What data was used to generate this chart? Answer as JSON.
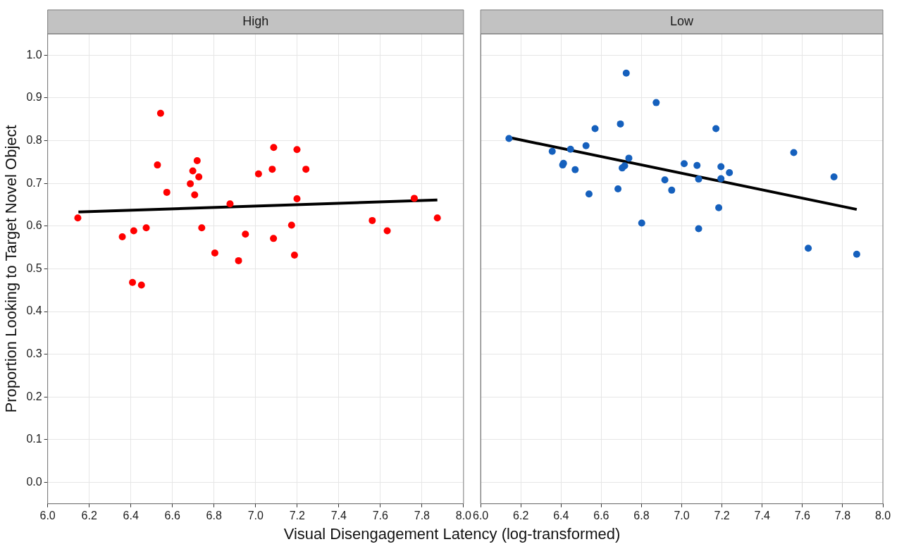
{
  "chart_data": [
    {
      "type": "scatter",
      "title": "High",
      "xlabel": "Visual Disengagement Latency (log-transformed)",
      "ylabel": "Proportion Looking to Target Novel Object",
      "xlim": [
        6,
        8
      ],
      "xticks": [
        {
          "value": 6,
          "label": "6.0"
        },
        6.2,
        6.4,
        6.6,
        6.8,
        {
          "value": 7,
          "label": "7.0"
        },
        7.2,
        7.4,
        7.6,
        7.8,
        {
          "value": 8,
          "label": "8.0"
        }
      ],
      "ylim": [
        -0.05,
        1.05
      ],
      "yticks": [
        {
          "value": 0,
          "label": "0.0"
        },
        0.1,
        0.2,
        0.3,
        0.4,
        0.5,
        0.6,
        0.7,
        0.8,
        0.9,
        {
          "value": 1,
          "label": "1.0"
        }
      ],
      "grid": true,
      "legend": false,
      "series": [
        {
          "type": "scatter",
          "marker": "circle",
          "color": "#ff0000",
          "x": [
            6.145,
            6.359,
            6.414,
            6.474,
            6.408,
            6.451,
            6.528,
            6.543,
            6.573,
            6.686,
            6.698,
            6.719,
            6.727,
            6.707,
            6.741,
            6.804,
            6.877,
            6.918,
            6.951,
            7.014,
            7.08,
            7.087,
            7.086,
            7.173,
            7.187,
            7.199,
            7.199,
            7.242,
            7.561,
            7.633,
            7.763,
            7.874
          ],
          "values": [
            0.619,
            0.575,
            0.589,
            0.596,
            0.468,
            0.462,
            0.743,
            0.864,
            0.679,
            0.699,
            0.729,
            0.753,
            0.715,
            0.673,
            0.596,
            0.537,
            0.652,
            0.519,
            0.581,
            0.722,
            0.733,
            0.784,
            0.571,
            0.602,
            0.532,
            0.779,
            0.664,
            0.733,
            0.613,
            0.589,
            0.665,
            0.619
          ]
        },
        {
          "type": "line",
          "color": "#000000",
          "x": [
            6.148,
            7.874
          ],
          "values": [
            0.633,
            0.661
          ]
        }
      ]
    },
    {
      "type": "scatter",
      "title": "Low",
      "xlim": [
        6,
        8
      ],
      "xticks": [
        {
          "value": 6,
          "label": "6.0"
        },
        6.2,
        6.4,
        6.6,
        6.8,
        {
          "value": 7,
          "label": "7.0"
        },
        7.2,
        7.4,
        7.6,
        7.8,
        {
          "value": 8,
          "label": "8.0"
        }
      ],
      "ylim": [
        -0.05,
        1.05
      ],
      "yticks": [
        0,
        0.1,
        0.2,
        0.3,
        0.4,
        0.5,
        0.6,
        0.7,
        0.8,
        0.9,
        1
      ],
      "tick_labels": "x",
      "grid": true,
      "legend": false,
      "series": [
        {
          "type": "scatter",
          "marker": "circle",
          "color": "#1560bd",
          "x": [
            6.141,
            6.356,
            6.447,
            6.408,
            6.412,
            6.47,
            6.524,
            6.569,
            6.539,
            6.695,
            6.724,
            6.683,
            6.704,
            6.716,
            6.737,
            6.801,
            6.873,
            6.916,
            6.95,
            7.012,
            7.076,
            7.084,
            7.084,
            7.17,
            7.184,
            7.195,
            7.195,
            7.237,
            7.557,
            7.757,
            7.629,
            7.87
          ],
          "values": [
            0.805,
            0.775,
            0.78,
            0.743,
            0.747,
            0.732,
            0.788,
            0.828,
            0.675,
            0.839,
            0.958,
            0.687,
            0.736,
            0.741,
            0.759,
            0.607,
            0.889,
            0.708,
            0.684,
            0.746,
            0.742,
            0.71,
            0.594,
            0.828,
            0.643,
            0.739,
            0.711,
            0.725,
            0.772,
            0.715,
            0.548,
            0.534
          ]
        },
        {
          "type": "line",
          "color": "#000000",
          "x": [
            6.145,
            7.87
          ],
          "values": [
            0.807,
            0.639
          ]
        }
      ]
    }
  ]
}
